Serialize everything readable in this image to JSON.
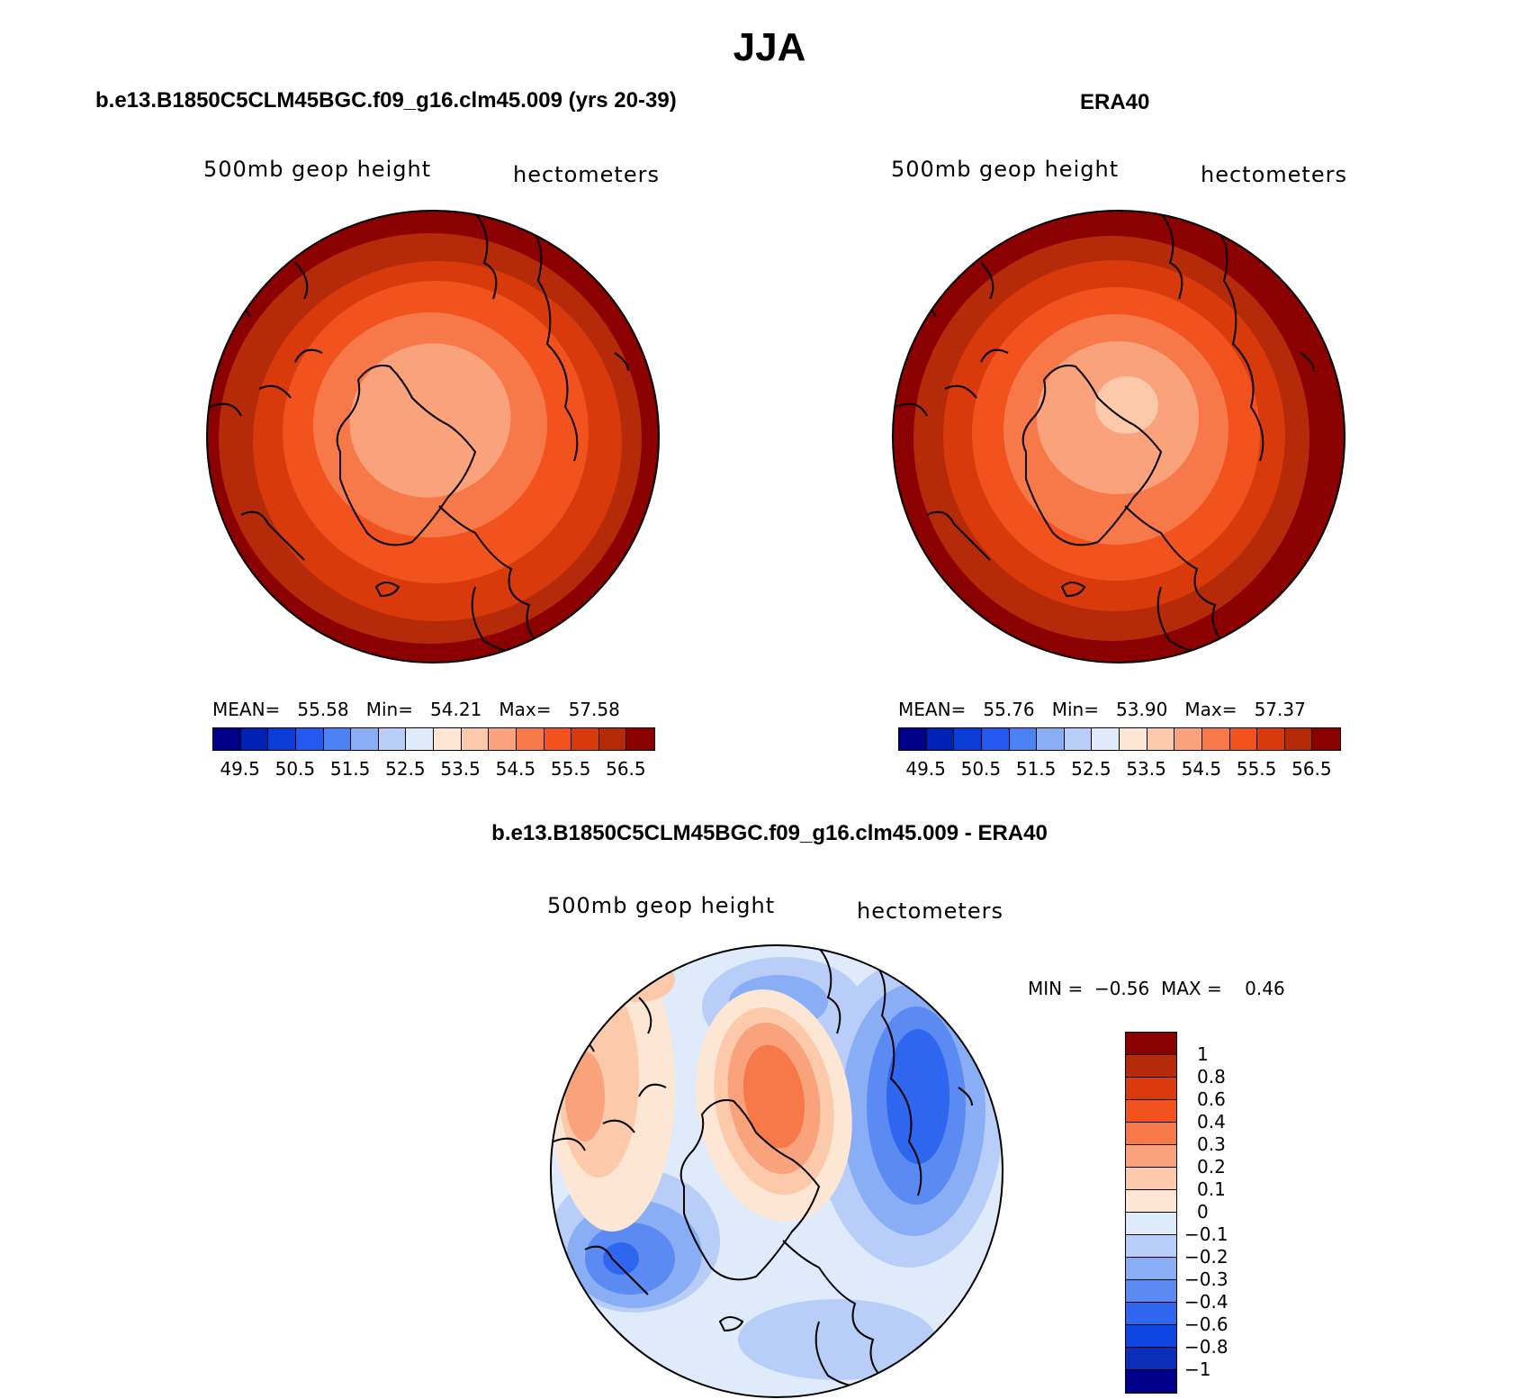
{
  "main_title": "JJA",
  "panels": [
    {
      "title": "b.e13.B1850C5CLM45BGC.f09_g16.clm45.009 (yrs 20-39)",
      "variable_label": "500mb geop height",
      "units_label": "hectometers",
      "stats": {
        "mean_label": "MEAN=",
        "mean": "55.58",
        "min_label": "Min=",
        "min": "54.21",
        "max_label": "Max=",
        "max": "57.58"
      }
    },
    {
      "title": "ERA40",
      "variable_label": "500mb geop height",
      "units_label": "hectometers",
      "stats": {
        "mean_label": "MEAN=",
        "mean": "55.76",
        "min_label": "Min=",
        "min": "53.90",
        "max_label": "Max=",
        "max": "57.37"
      }
    },
    {
      "title": "b.e13.B1850C5CLM45BGC.f09_g16.clm45.009 - ERA40",
      "variable_label": "500mb geop height",
      "units_label": "hectometers",
      "stats": {
        "min_label": "MIN =",
        "min": "−0.56",
        "max_label": "MAX =",
        "max": "0.46"
      }
    }
  ],
  "abs_colorbar": {
    "colors": [
      "#00008b",
      "#0022b4",
      "#0a3cd6",
      "#2459f0",
      "#4c80f5",
      "#8aaef5",
      "#b8cef8",
      "#dfeafb",
      "#fde6d4",
      "#fcc9aa",
      "#f9a27c",
      "#f77848",
      "#f2521e",
      "#d93a0c",
      "#b52a08",
      "#8b0000"
    ],
    "labels": [
      "49.5",
      "50.5",
      "51.5",
      "52.5",
      "53.5",
      "54.5",
      "55.5",
      "56.5"
    ]
  },
  "diff_colorbar": {
    "colors": [
      "#8b0000",
      "#b52a08",
      "#db3a0c",
      "#f2521e",
      "#f77848",
      "#f9a27c",
      "#fcc9aa",
      "#fde6d4",
      "#dfeafb",
      "#b8cef8",
      "#8aaef5",
      "#5a8af2",
      "#2f66ef",
      "#0f45e0",
      "#0a2eb8",
      "#00008b"
    ],
    "labels": [
      "1",
      "0.8",
      "0.6",
      "0.4",
      "0.3",
      "0.2",
      "0.1",
      "0",
      "−0.1",
      "−0.2",
      "−0.3",
      "−0.4",
      "−0.6",
      "−0.8",
      "−1"
    ]
  },
  "map_colors": {
    "model": [
      "#8b0000",
      "#b52a08",
      "#d93a0c",
      "#f2521e",
      "#f77848",
      "#f9a27c"
    ],
    "era": [
      "#8b0000",
      "#b52a08",
      "#d93a0c",
      "#f2521e",
      "#f77848",
      "#f9a27c",
      "#fcc9aa"
    ],
    "diff_background": "#dfeafb",
    "diff_positive": [
      "#fde6d4",
      "#fcc9aa",
      "#f9a27c",
      "#f77848"
    ],
    "diff_negative": [
      "#b8cef8",
      "#8aaef5",
      "#5a8af2",
      "#2f66ef"
    ]
  }
}
